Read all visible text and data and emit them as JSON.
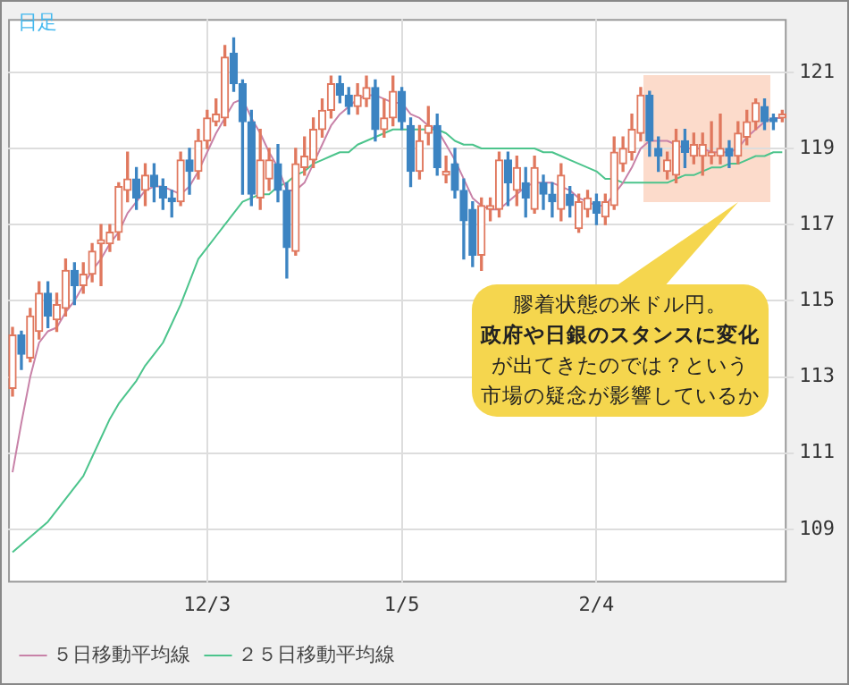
{
  "chart_data": {
    "type": "candlestick",
    "title": "日足",
    "categories": [
      null,
      null,
      null,
      null,
      null,
      null,
      null,
      null,
      null,
      null,
      null,
      null,
      null,
      null,
      null,
      null,
      null,
      null,
      null,
      null,
      null,
      null,
      "12/3",
      null,
      null,
      null,
      null,
      null,
      null,
      null,
      null,
      null,
      null,
      null,
      null,
      null,
      null,
      null,
      null,
      null,
      null,
      null,
      null,
      null,
      "1/5",
      null,
      null,
      null,
      null,
      null,
      null,
      null,
      null,
      null,
      null,
      null,
      null,
      null,
      null,
      null,
      null,
      null,
      null,
      null,
      null,
      null,
      "2/4",
      null,
      null,
      null,
      null,
      null,
      null,
      null,
      null,
      null,
      null,
      null,
      null,
      null,
      null,
      null,
      null,
      null,
      null,
      null,
      null,
      null
    ],
    "ohlc": [
      [
        112.7,
        114.3,
        112.5,
        114.1
      ],
      [
        114.1,
        114.2,
        113.2,
        113.6
      ],
      [
        113.5,
        114.8,
        113.4,
        114.6
      ],
      [
        114.2,
        115.5,
        114.0,
        115.2
      ],
      [
        115.2,
        115.5,
        114.3,
        114.6
      ],
      [
        114.5,
        115.2,
        114.2,
        114.9
      ],
      [
        114.8,
        116.1,
        114.6,
        115.8
      ],
      [
        115.8,
        116.0,
        114.9,
        115.4
      ],
      [
        115.4,
        116.0,
        115.2,
        115.7
      ],
      [
        115.7,
        116.5,
        115.5,
        116.3
      ],
      [
        116.5,
        117.0,
        115.4,
        116.6
      ],
      [
        116.5,
        117.0,
        116.3,
        116.8
      ],
      [
        116.8,
        118.1,
        116.6,
        118.0
      ],
      [
        117.9,
        118.9,
        117.6,
        118.2
      ],
      [
        118.2,
        118.5,
        117.4,
        117.7
      ],
      [
        117.9,
        118.6,
        117.5,
        118.3
      ],
      [
        118.3,
        118.6,
        117.6,
        118.0
      ],
      [
        118.0,
        118.2,
        117.4,
        117.7
      ],
      [
        117.7,
        117.9,
        117.2,
        117.6
      ],
      [
        117.6,
        118.9,
        117.5,
        118.7
      ],
      [
        118.7,
        119.0,
        117.8,
        118.4
      ],
      [
        118.4,
        119.5,
        118.2,
        119.2
      ],
      [
        119.2,
        120.0,
        119.0,
        119.8
      ],
      [
        119.7,
        120.3,
        119.6,
        119.9
      ],
      [
        119.8,
        121.7,
        119.6,
        121.4
      ],
      [
        121.5,
        121.9,
        120.5,
        120.7
      ],
      [
        120.7,
        120.8,
        117.8,
        119.7
      ],
      [
        119.7,
        120.0,
        117.5,
        117.8
      ],
      [
        117.7,
        119.5,
        117.4,
        118.7
      ],
      [
        118.2,
        119.0,
        117.9,
        118.7
      ],
      [
        118.6,
        119.1,
        117.6,
        117.9
      ],
      [
        117.9,
        118.1,
        115.6,
        116.4
      ],
      [
        116.3,
        119.0,
        116.2,
        118.6
      ],
      [
        118.5,
        119.3,
        118.3,
        118.8
      ],
      [
        118.7,
        119.8,
        118.5,
        119.5
      ],
      [
        119.5,
        120.3,
        119.3,
        120.0
      ],
      [
        120.0,
        120.9,
        119.8,
        120.7
      ],
      [
        120.7,
        120.9,
        120.2,
        120.4
      ],
      [
        120.4,
        120.6,
        119.9,
        120.1
      ],
      [
        120.1,
        120.7,
        119.9,
        120.4
      ],
      [
        120.3,
        120.9,
        120.1,
        120.6
      ],
      [
        120.6,
        120.8,
        119.2,
        119.5
      ],
      [
        119.5,
        120.3,
        119.3,
        119.8
      ],
      [
        119.8,
        120.9,
        119.6,
        120.5
      ],
      [
        120.5,
        120.6,
        119.5,
        119.7
      ],
      [
        119.6,
        119.8,
        118.0,
        118.4
      ],
      [
        118.4,
        119.6,
        118.2,
        119.2
      ],
      [
        119.4,
        120.1,
        119.1,
        119.6
      ],
      [
        119.6,
        119.9,
        118.3,
        118.5
      ],
      [
        118.3,
        118.8,
        118.1,
        118.4
      ],
      [
        118.6,
        119.0,
        117.7,
        117.9
      ],
      [
        117.9,
        118.2,
        116.1,
        117.1
      ],
      [
        117.4,
        117.6,
        115.9,
        116.2
      ],
      [
        116.2,
        117.7,
        115.8,
        117.5
      ],
      [
        117.4,
        117.7,
        117.1,
        117.5
      ],
      [
        117.4,
        118.9,
        117.2,
        118.7
      ],
      [
        118.7,
        118.9,
        117.5,
        118.1
      ],
      [
        117.9,
        118.8,
        117.5,
        118.5
      ],
      [
        118.1,
        118.5,
        117.2,
        117.7
      ],
      [
        117.4,
        118.8,
        117.3,
        118.5
      ],
      [
        118.1,
        118.3,
        117.4,
        117.8
      ],
      [
        117.8,
        118.1,
        117.2,
        117.6
      ],
      [
        117.4,
        118.6,
        117.1,
        118.3
      ],
      [
        117.8,
        118.0,
        117.2,
        117.5
      ],
      [
        116.9,
        117.8,
        116.8,
        117.6
      ],
      [
        117.4,
        117.9,
        117.2,
        117.7
      ],
      [
        117.6,
        117.8,
        117.0,
        117.3
      ],
      [
        117.2,
        117.8,
        117.0,
        117.6
      ],
      [
        117.5,
        119.3,
        117.4,
        118.9
      ],
      [
        118.6,
        119.3,
        118.4,
        119.0
      ],
      [
        118.9,
        119.9,
        118.7,
        119.5
      ],
      [
        119.4,
        120.6,
        119.2,
        120.4
      ],
      [
        120.4,
        120.5,
        118.8,
        119.2
      ],
      [
        119.0,
        119.3,
        118.4,
        118.8
      ],
      [
        118.4,
        118.9,
        118.2,
        118.7
      ],
      [
        118.3,
        119.5,
        118.1,
        119.2
      ],
      [
        119.2,
        119.5,
        118.5,
        118.9
      ],
      [
        118.8,
        119.4,
        118.6,
        119.1
      ],
      [
        118.8,
        119.4,
        118.3,
        119.1
      ],
      [
        118.8,
        119.7,
        118.6,
        118.9
      ],
      [
        118.8,
        119.9,
        118.6,
        119.0
      ],
      [
        119.0,
        119.2,
        118.5,
        118.8
      ],
      [
        118.8,
        119.7,
        118.6,
        119.4
      ],
      [
        119.3,
        120.0,
        119.1,
        119.7
      ],
      [
        119.7,
        120.3,
        119.5,
        120.2
      ],
      [
        120.1,
        120.3,
        119.5,
        119.7
      ],
      [
        119.8,
        119.9,
        119.5,
        119.7
      ],
      [
        119.8,
        120.0,
        119.7,
        119.9
      ]
    ],
    "series": [
      {
        "name": "５日移動平均線",
        "type": "line",
        "color": "#c882a8",
        "values": [
          110.5,
          111.8,
          113.0,
          113.9,
          114.2,
          114.3,
          114.7,
          115.0,
          115.4,
          115.8,
          116.1,
          116.5,
          116.8,
          117.3,
          117.6,
          117.9,
          118.0,
          118.0,
          117.9,
          117.8,
          118.0,
          118.4,
          118.9,
          119.4,
          119.8,
          120.2,
          120.3,
          119.8,
          119.4,
          118.9,
          118.5,
          117.9,
          117.9,
          118.1,
          118.6,
          119.1,
          119.6,
          119.9,
          120.1,
          120.3,
          120.4,
          120.4,
          120.3,
          120.2,
          120.2,
          119.9,
          119.8,
          119.6,
          119.5,
          119.1,
          118.7,
          118.2,
          117.7,
          117.5,
          117.4,
          117.4,
          117.6,
          117.8,
          118.0,
          118.1,
          118.1,
          118.1,
          118.0,
          117.9,
          117.7,
          117.6,
          117.5,
          117.5,
          117.8,
          118.1,
          118.5,
          119.0,
          119.2,
          119.2,
          119.2,
          119.1,
          119.0,
          119.0,
          119.0,
          118.9,
          118.9,
          118.9,
          119.0,
          119.3,
          119.5,
          119.7,
          119.8,
          119.8
        ]
      },
      {
        "name": "２５日移動平均線",
        "type": "line",
        "color": "#4cc48c",
        "values": [
          108.4,
          108.6,
          108.8,
          109.0,
          109.2,
          109.5,
          109.8,
          110.1,
          110.4,
          110.9,
          111.4,
          111.9,
          112.3,
          112.6,
          112.9,
          113.3,
          113.6,
          113.9,
          114.4,
          114.9,
          115.5,
          116.1,
          116.4,
          116.7,
          117.0,
          117.3,
          117.6,
          117.7,
          117.8,
          117.8,
          118.0,
          118.1,
          118.3,
          118.4,
          118.6,
          118.7,
          118.8,
          118.9,
          118.9,
          119.1,
          119.2,
          119.3,
          119.4,
          119.5,
          119.5,
          119.5,
          119.5,
          119.5,
          119.5,
          119.4,
          119.2,
          119.1,
          119.1,
          119.0,
          119.0,
          119.0,
          119.0,
          119.0,
          119.0,
          119.0,
          118.9,
          118.9,
          118.8,
          118.7,
          118.6,
          118.5,
          118.4,
          118.2,
          118.2,
          118.1,
          118.1,
          118.1,
          118.1,
          118.1,
          118.1,
          118.2,
          118.3,
          118.3,
          118.4,
          118.5,
          118.5,
          118.6,
          118.6,
          118.7,
          118.8,
          118.8,
          118.9,
          118.9
        ]
      }
    ],
    "ylim": [
      107.6,
      122.4
    ],
    "yticks": [
      109,
      111,
      113,
      115,
      117,
      119,
      121
    ],
    "grid": true,
    "legend": "bottom",
    "annotations": [
      "膠着状態の米ドル円。",
      "政府や日銀のスタンスに変化",
      "が出てきたのでは？という",
      "市場の疑念が影響しているか"
    ]
  }
}
